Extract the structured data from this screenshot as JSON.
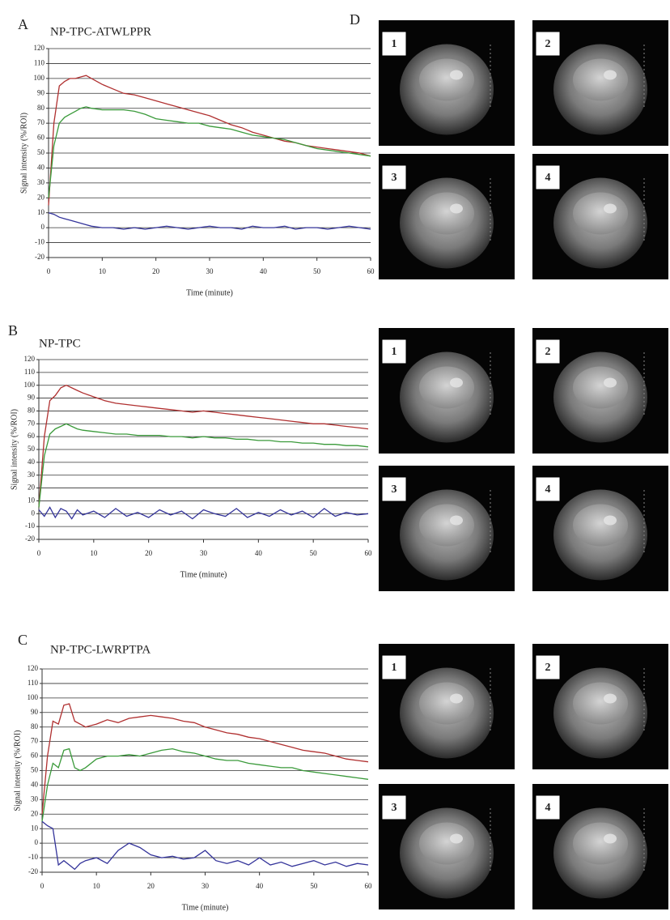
{
  "chart_data": [
    {
      "type": "line",
      "panel": "A",
      "title": "NP-TPC-ATWLPPR",
      "y_label": "Signal intensity (%/ROI)",
      "x_label": "Time (minute)",
      "xlim": [
        0,
        60
      ],
      "xticks": [
        0,
        10,
        20,
        30,
        40,
        50,
        60
      ],
      "ylim": [
        -20,
        120
      ],
      "yticks": [
        -20,
        -10,
        0,
        10,
        20,
        30,
        40,
        50,
        60,
        70,
        80,
        90,
        100,
        110,
        120
      ],
      "grid": true,
      "x": [
        0,
        1,
        2,
        3,
        4,
        5,
        6,
        7,
        8,
        10,
        12,
        14,
        16,
        18,
        20,
        22,
        24,
        26,
        28,
        30,
        32,
        34,
        36,
        38,
        40,
        42,
        44,
        46,
        48,
        50,
        52,
        54,
        56,
        58,
        60
      ],
      "series": [
        {
          "color": "#b03030",
          "values": [
            15,
            70,
            95,
            98,
            100,
            100,
            101,
            102,
            100,
            96,
            93,
            90,
            89,
            87,
            85,
            83,
            81,
            79,
            77,
            75,
            72,
            69,
            67,
            64,
            62,
            60,
            58,
            57,
            55,
            54,
            53,
            52,
            51,
            50,
            48
          ]
        },
        {
          "color": "#3a9a3a",
          "values": [
            20,
            55,
            70,
            74,
            76,
            78,
            80,
            81,
            80,
            79,
            79,
            79,
            78,
            76,
            73,
            72,
            71,
            70,
            70,
            68,
            67,
            66,
            64,
            62,
            61,
            60,
            59,
            57,
            55,
            53,
            52,
            51,
            50,
            49,
            48
          ]
        },
        {
          "color": "#33339a",
          "values": [
            10,
            9,
            7,
            6,
            5,
            4,
            3,
            2,
            1,
            0,
            0,
            -1,
            0,
            -1,
            0,
            1,
            0,
            -1,
            0,
            1,
            0,
            0,
            -1,
            1,
            0,
            0,
            1,
            -1,
            0,
            0,
            -1,
            0,
            1,
            0,
            -1
          ]
        }
      ]
    },
    {
      "type": "line",
      "panel": "B",
      "title": "NP-TPC",
      "y_label": "Signal intensity (%/ROI)",
      "x_label": "Time (minute)",
      "xlim": [
        0,
        60
      ],
      "xticks": [
        0,
        10,
        20,
        30,
        40,
        50,
        60
      ],
      "ylim": [
        -20,
        120
      ],
      "yticks": [
        -20,
        -10,
        0,
        10,
        20,
        30,
        40,
        50,
        60,
        70,
        80,
        90,
        100,
        110,
        120
      ],
      "grid": true,
      "x": [
        0,
        1,
        2,
        3,
        4,
        5,
        6,
        7,
        8,
        10,
        12,
        14,
        16,
        18,
        20,
        22,
        24,
        26,
        28,
        30,
        32,
        34,
        36,
        38,
        40,
        42,
        44,
        46,
        48,
        50,
        52,
        54,
        56,
        58,
        60
      ],
      "series": [
        {
          "color": "#b03030",
          "values": [
            5,
            60,
            88,
            92,
            98,
            100,
            98,
            96,
            94,
            91,
            88,
            86,
            85,
            84,
            83,
            82,
            81,
            80,
            79,
            80,
            79,
            78,
            77,
            76,
            75,
            74,
            73,
            72,
            71,
            70,
            70,
            69,
            68,
            67,
            66
          ]
        },
        {
          "color": "#3a9a3a",
          "values": [
            5,
            45,
            62,
            66,
            68,
            70,
            68,
            66,
            65,
            64,
            63,
            62,
            62,
            61,
            61,
            61,
            60,
            60,
            59,
            60,
            59,
            59,
            58,
            58,
            57,
            57,
            56,
            56,
            55,
            55,
            54,
            54,
            53,
            53,
            52
          ]
        },
        {
          "color": "#33339a",
          "values": [
            3,
            -2,
            5,
            -3,
            4,
            2,
            -4,
            3,
            -1,
            2,
            -3,
            4,
            -2,
            1,
            -3,
            3,
            -1,
            2,
            -4,
            3,
            0,
            -2,
            4,
            -3,
            1,
            -2,
            3,
            -1,
            2,
            -3,
            4,
            -2,
            1,
            -1,
            0
          ]
        }
      ]
    },
    {
      "type": "line",
      "panel": "C",
      "title": "NP-TPC-LWRPTPA",
      "y_label": "Signal intensity (%/ROI)",
      "x_label": "Time (minute)",
      "xlim": [
        0,
        60
      ],
      "xticks": [
        0,
        10,
        20,
        30,
        40,
        50,
        60
      ],
      "ylim": [
        -20,
        120
      ],
      "yticks": [
        -20,
        -10,
        0,
        10,
        20,
        30,
        40,
        50,
        60,
        70,
        80,
        90,
        100,
        110,
        120
      ],
      "grid": true,
      "x": [
        0,
        1,
        2,
        3,
        4,
        5,
        6,
        7,
        8,
        10,
        12,
        14,
        16,
        18,
        20,
        22,
        24,
        26,
        28,
        30,
        32,
        34,
        36,
        38,
        40,
        42,
        44,
        46,
        48,
        50,
        52,
        54,
        56,
        58,
        60
      ],
      "series": [
        {
          "color": "#b03030",
          "values": [
            20,
            60,
            84,
            82,
            95,
            96,
            84,
            82,
            80,
            82,
            85,
            83,
            86,
            87,
            88,
            87,
            86,
            84,
            83,
            80,
            78,
            76,
            75,
            73,
            72,
            70,
            68,
            66,
            64,
            63,
            62,
            60,
            58,
            57,
            56
          ]
        },
        {
          "color": "#3a9a3a",
          "values": [
            15,
            40,
            55,
            52,
            64,
            65,
            52,
            50,
            52,
            58,
            60,
            60,
            61,
            60,
            62,
            64,
            65,
            63,
            62,
            60,
            58,
            57,
            57,
            55,
            54,
            53,
            52,
            52,
            50,
            49,
            48,
            47,
            46,
            45,
            44
          ]
        },
        {
          "color": "#33339a",
          "values": [
            15,
            12,
            10,
            -15,
            -12,
            -15,
            -18,
            -14,
            -12,
            -10,
            -14,
            -5,
            0,
            -3,
            -8,
            -10,
            -9,
            -11,
            -10,
            -5,
            -12,
            -14,
            -12,
            -15,
            -10,
            -15,
            -13,
            -16,
            -14,
            -12,
            -15,
            -13,
            -16,
            -14,
            -15
          ]
        }
      ]
    }
  ],
  "panel_d": {
    "label": "D",
    "groups": [
      [
        "1",
        "2",
        "3",
        "4"
      ],
      [
        "1",
        "2",
        "3",
        "4"
      ],
      [
        "1",
        "2",
        "3",
        "4"
      ]
    ]
  }
}
